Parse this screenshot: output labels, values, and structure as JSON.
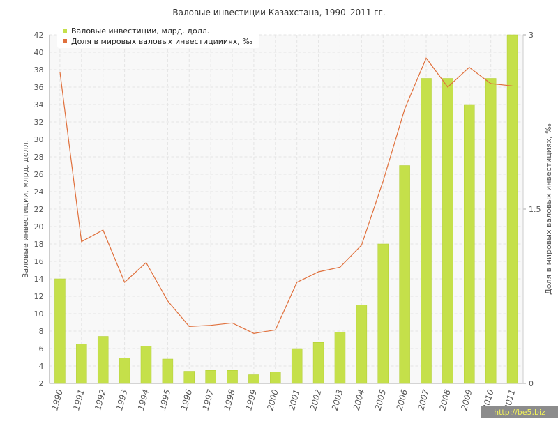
{
  "chart_data": {
    "type": "bar-line",
    "title": "Валовые инвестиции Казахстана, 1990–2011 гг.",
    "y_label": "Валовые инвестиции, млрд. долл.",
    "y2_label": "Доля в мировых валовых инвестициях, ‰",
    "categories": [
      "1990",
      "1991",
      "1992",
      "1993",
      "1994",
      "1995",
      "1996",
      "1997",
      "1998",
      "1999",
      "2000",
      "2001",
      "2002",
      "2003",
      "2004",
      "2005",
      "2006",
      "2007",
      "2008",
      "2009",
      "2010",
      "2011"
    ],
    "series": [
      {
        "name": "Валовые инвестиции, млрд. долл.",
        "type": "bar",
        "color": "#c5e04a",
        "values": [
          14,
          6.5,
          7.4,
          4.9,
          6.3,
          4.8,
          3.4,
          3.5,
          3.5,
          3.0,
          3.3,
          6.0,
          6.7,
          7.9,
          11.0,
          18,
          27,
          37,
          37,
          34,
          37,
          42
        ]
      },
      {
        "name": "Доля в мировых валовых инвестициииях, ‰",
        "type": "line",
        "axis": "y2",
        "color": "#e0703c",
        "values": [
          2.68,
          1.22,
          1.32,
          0.87,
          1.04,
          0.71,
          0.49,
          0.5,
          0.52,
          0.43,
          0.46,
          0.87,
          0.96,
          1.0,
          1.19,
          1.74,
          2.36,
          2.8,
          2.55,
          2.72,
          2.58,
          2.56
        ]
      }
    ],
    "ylim": [
      2,
      42
    ],
    "yticks": [
      2,
      4,
      6,
      8,
      10,
      12,
      14,
      16,
      18,
      20,
      22,
      24,
      26,
      28,
      30,
      32,
      34,
      36,
      38,
      40,
      42
    ],
    "y2lim": [
      0,
      3
    ],
    "y2ticks": [
      0,
      1.5,
      3
    ],
    "grid": true,
    "legend": "top-left"
  },
  "watermark": "http://be5.biz"
}
